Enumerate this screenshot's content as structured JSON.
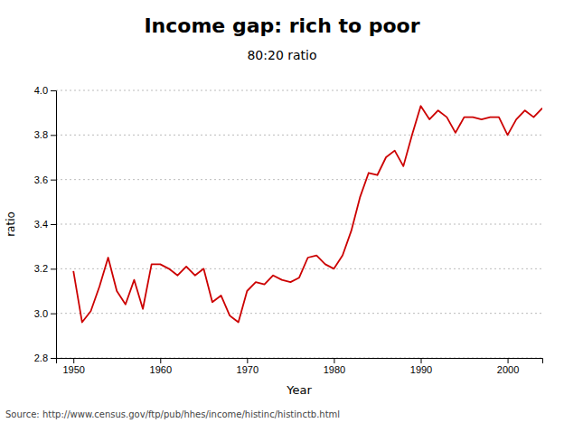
{
  "chart_data": {
    "type": "line",
    "title": "Income gap: rich to poor",
    "subtitle": "80:20 ratio",
    "xlabel": "Year",
    "ylabel": "ratio",
    "source": "Source: http://www.census.gov/ftp/pub/hhes/income/histinc/histinctb.html",
    "color": "#cc0000",
    "grid": true,
    "xlim": [
      1948,
      2004
    ],
    "ylim": [
      2.8,
      4.0
    ],
    "xticks": [
      1950,
      1960,
      1970,
      1980,
      1990,
      2000
    ],
    "yticks": [
      2.8,
      {
        "value": 3.0,
        "label": "3.0"
      },
      3.2,
      3.4,
      3.6,
      3.8,
      {
        "value": 4.0,
        "label": "4.0"
      }
    ],
    "x": [
      1950,
      1951,
      1952,
      1953,
      1954,
      1955,
      1956,
      1957,
      1958,
      1959,
      1960,
      1961,
      1962,
      1963,
      1964,
      1965,
      1966,
      1967,
      1968,
      1969,
      1970,
      1971,
      1972,
      1973,
      1974,
      1975,
      1976,
      1977,
      1978,
      1979,
      1980,
      1981,
      1982,
      1983,
      1984,
      1985,
      1986,
      1987,
      1988,
      1989,
      1990,
      1991,
      1992,
      1993,
      1994,
      1995,
      1996,
      1997,
      1998,
      1999,
      2000,
      2001,
      2002,
      2003,
      2004
    ],
    "values": [
      3.19,
      2.96,
      3.01,
      3.12,
      3.25,
      3.1,
      3.04,
      3.15,
      3.02,
      3.22,
      3.22,
      3.2,
      3.17,
      3.21,
      3.17,
      3.2,
      3.05,
      3.08,
      2.99,
      2.96,
      3.1,
      3.14,
      3.13,
      3.17,
      3.15,
      3.14,
      3.16,
      3.25,
      3.26,
      3.22,
      3.2,
      3.26,
      3.37,
      3.52,
      3.63,
      3.62,
      3.7,
      3.73,
      3.66,
      3.8,
      3.93,
      3.87,
      3.91,
      3.88,
      3.81,
      3.88,
      3.88,
      3.87,
      3.88,
      3.88,
      3.8,
      3.87,
      3.91,
      3.88,
      3.92
    ]
  }
}
